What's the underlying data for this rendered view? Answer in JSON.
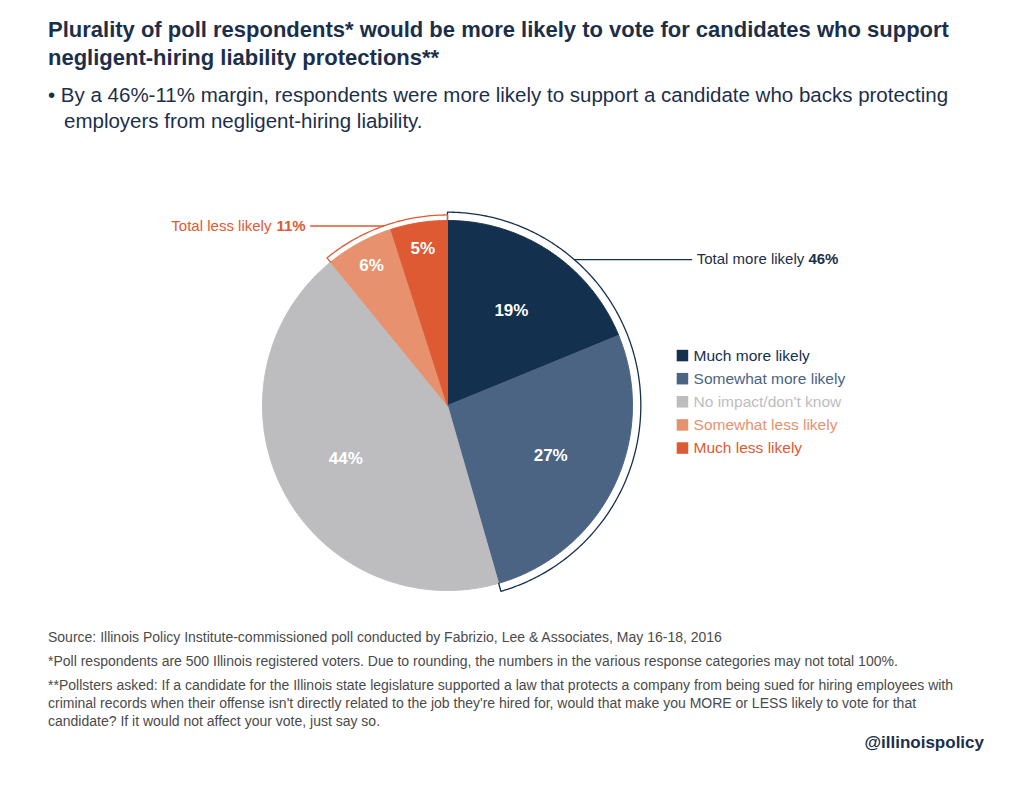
{
  "chart_data": {
    "type": "pie",
    "title": "Plurality of poll respondents* would be more likely to vote for candidates who support negligent-hiring liability protections**",
    "subtitle": "• By a 46%-11% margin, respondents were more likely to support a candidate who backs protecting employers from negligent-hiring liability.",
    "categories": [
      "Much more likely",
      "Somewhat more likely",
      "No impact/don't know",
      "Somewhat less likely",
      "Much less likely"
    ],
    "values": [
      19,
      27,
      44,
      6,
      5
    ],
    "value_labels": [
      "19%",
      "27%",
      "44%",
      "6%",
      "5%"
    ],
    "colors": [
      "#14304f",
      "#4b6483",
      "#bdbdbf",
      "#e8916e",
      "#dd5a33"
    ],
    "data_labels": true,
    "legend": "right",
    "annotations": [
      {
        "text": "Total more likely",
        "value": 46,
        "label": "46%",
        "categories": [
          "Much more likely",
          "Somewhat more likely"
        ]
      },
      {
        "text": "Total less likely",
        "value": 11,
        "label": "11%",
        "categories": [
          "Somewhat less likely",
          "Much less likely"
        ]
      }
    ],
    "source": "Source: Illinois Policy Institute-commissioned poll conducted by Fabrizio, Lee & Associates, May 16-18, 2016",
    "notes": [
      "*Poll respondents are 500 Illinois registered voters. Due to rounding, the numbers in the various response categories may not total 100%.",
      "**Pollsters asked: If a candidate for the Illinois state legislature supported a law that protects a company from being sued for hiring employees with criminal records when their offense isn't directly related to the job they're hired for, would that make you MORE or LESS likely to vote for that candidate? If it would not affect your vote, just say so."
    ],
    "credit": "@illinoispolicy"
  }
}
